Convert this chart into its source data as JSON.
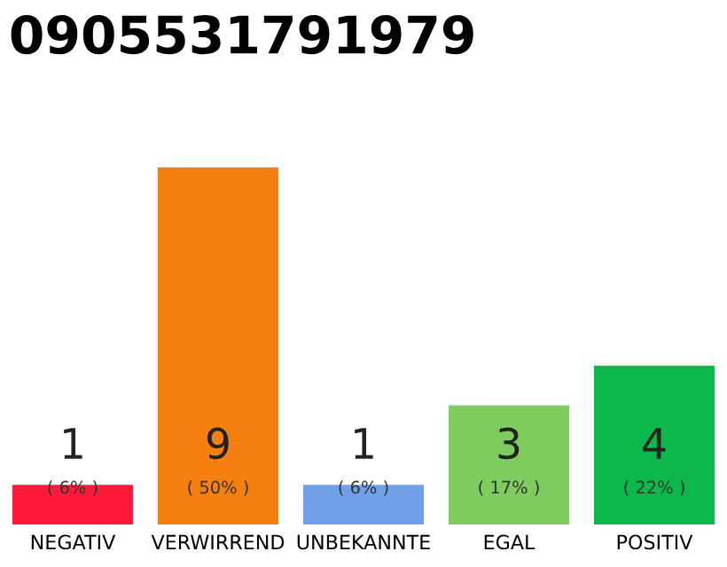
{
  "chart_data": {
    "type": "bar",
    "title": "0905531791979",
    "categories": [
      "NEGATIV",
      "VERWIRREND",
      "UNBEKANNTE",
      "EGAL",
      "POSITIV"
    ],
    "values": [
      1,
      9,
      1,
      3,
      4
    ],
    "colors": [
      "#ff1a3c",
      "#f57f0f",
      "#6fa0e8",
      "#7fcd5f",
      "#0db84a"
    ],
    "data_labels": true,
    "annotations": [
      "( 6% )",
      "( 50% )",
      "( 6% )",
      "( 17% )",
      "( 22% )"
    ],
    "grid": false,
    "legend": false
  }
}
